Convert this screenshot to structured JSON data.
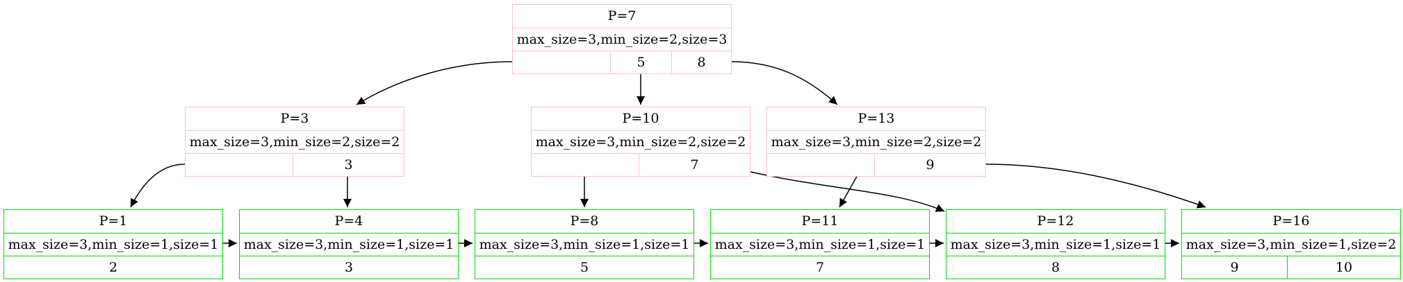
{
  "colors": {
    "internal": "#ffc0cb",
    "leaf": "#00dd00",
    "edge": "#000000"
  },
  "nodes": [
    {
      "id": "n7",
      "type": "internal",
      "title": "P=7",
      "meta": "max_size=3,min_size=2,size=3",
      "keys": [
        "",
        "5",
        "8"
      ]
    },
    {
      "id": "n3",
      "type": "internal",
      "title": "P=3",
      "meta": "max_size=3,min_size=2,size=2",
      "keys": [
        "",
        "3"
      ]
    },
    {
      "id": "n10",
      "type": "internal",
      "title": "P=10",
      "meta": "max_size=3,min_size=2,size=2",
      "keys": [
        "",
        "7"
      ]
    },
    {
      "id": "n13",
      "type": "internal",
      "title": "P=13",
      "meta": "max_size=3,min_size=2,size=2",
      "keys": [
        "",
        "9"
      ]
    },
    {
      "id": "n1",
      "type": "leaf",
      "title": "P=1",
      "meta": "max_size=3,min_size=1,size=1",
      "keys": [
        "2"
      ]
    },
    {
      "id": "n4",
      "type": "leaf",
      "title": "P=4",
      "meta": "max_size=3,min_size=1,size=1",
      "keys": [
        "3"
      ]
    },
    {
      "id": "n8",
      "type": "leaf",
      "title": "P=8",
      "meta": "max_size=3,min_size=1,size=1",
      "keys": [
        "5"
      ]
    },
    {
      "id": "n11",
      "type": "leaf",
      "title": "P=11",
      "meta": "max_size=3,min_size=1,size=1",
      "keys": [
        "7"
      ]
    },
    {
      "id": "n12",
      "type": "leaf",
      "title": "P=12",
      "meta": "max_size=3,min_size=1,size=1",
      "keys": [
        "8"
      ]
    },
    {
      "id": "n16",
      "type": "leaf",
      "title": "P=16",
      "meta": "max_size=3,min_size=1,size=2",
      "keys": [
        "9",
        "10"
      ]
    }
  ],
  "edges": [
    {
      "from": "n7",
      "to": "n3",
      "kind": "child"
    },
    {
      "from": "n7",
      "to": "n10",
      "kind": "child"
    },
    {
      "from": "n7",
      "to": "n13",
      "kind": "child"
    },
    {
      "from": "n3",
      "to": "n1",
      "kind": "child"
    },
    {
      "from": "n3",
      "to": "n4",
      "kind": "child"
    },
    {
      "from": "n10",
      "to": "n8",
      "kind": "child"
    },
    {
      "from": "n10",
      "to": "n12",
      "kind": "child"
    },
    {
      "from": "n13",
      "to": "n11",
      "kind": "child"
    },
    {
      "from": "n13",
      "to": "n16",
      "kind": "child"
    },
    {
      "from": "n1",
      "to": "n4",
      "kind": "sibling"
    },
    {
      "from": "n4",
      "to": "n8",
      "kind": "sibling"
    },
    {
      "from": "n8",
      "to": "n11",
      "kind": "sibling"
    },
    {
      "from": "n11",
      "to": "n12",
      "kind": "sibling"
    },
    {
      "from": "n12",
      "to": "n16",
      "kind": "sibling"
    }
  ]
}
